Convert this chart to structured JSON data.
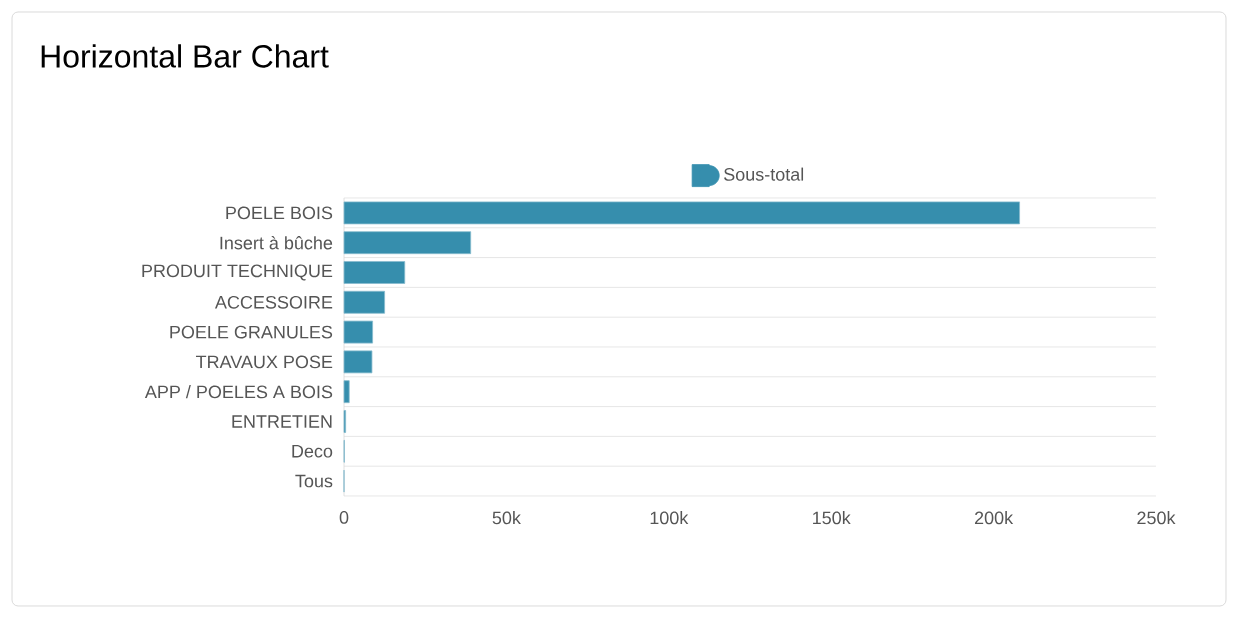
{
  "chart_data": {
    "type": "bar",
    "orientation": "horizontal",
    "title": "Horizontal Bar Chart",
    "categories": [
      "POELE BOIS",
      "Insert à bûche",
      "PRODUIT TECHNIQUE",
      "ACCESSOIRE",
      "POELE GRANULES",
      "TRAVAUX POSE",
      "APP / POELES A BOIS",
      "ENTRETIEN",
      "Deco",
      "Tous"
    ],
    "series": [
      {
        "name": "Sous-total",
        "color": "#368ead",
        "values": [
          208000,
          39000,
          18700,
          12500,
          8800,
          8600,
          1600,
          500,
          100,
          0
        ]
      }
    ],
    "xlim": [
      0,
      250000
    ],
    "xticks": [
      0,
      {
        "value": 50000,
        "label": "50k"
      },
      {
        "value": 100000,
        "label": "100k"
      },
      {
        "value": 150000,
        "label": "150k"
      },
      {
        "value": 200000,
        "label": "200k"
      },
      {
        "value": 250000,
        "label": "250k"
      }
    ],
    "grid": "y",
    "legend": "top",
    "marker": "circle"
  }
}
